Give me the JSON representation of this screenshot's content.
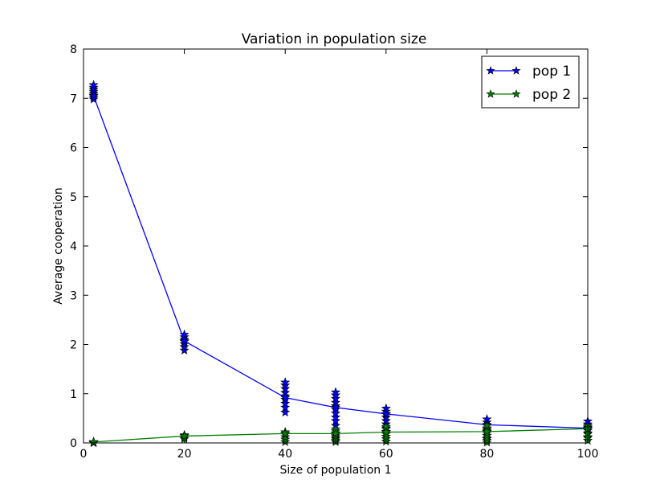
{
  "chart_data": {
    "type": "line",
    "title": "Variation in population size",
    "xlabel": "Size of population 1",
    "ylabel": "Average cooperation",
    "xlim": [
      0,
      100
    ],
    "ylim": [
      0,
      8
    ],
    "x_ticks": [
      0,
      20,
      40,
      60,
      80,
      100
    ],
    "y_ticks": [
      0,
      1,
      2,
      3,
      4,
      5,
      6,
      7,
      8
    ],
    "grid": false,
    "legend_position": "top-right",
    "series": [
      {
        "name": "pop 1",
        "color": "#0000ff",
        "marker": "star",
        "x": [
          2,
          20,
          40,
          50,
          60,
          80,
          100
        ],
        "y": [
          7.05,
          2.07,
          0.92,
          0.72,
          0.59,
          0.37,
          0.3
        ],
        "samples": [
          {
            "x": 2,
            "y": [
              6.98,
              7.02,
              7.06,
              7.1,
              7.14,
              7.18,
              7.22,
              7.27
            ]
          },
          {
            "x": 20,
            "y": [
              1.88,
              1.95,
              2.01,
              2.06,
              2.1,
              2.15,
              2.2
            ]
          },
          {
            "x": 40,
            "y": [
              0.62,
              0.72,
              0.8,
              0.88,
              0.95,
              1.02,
              1.1,
              1.17,
              1.23
            ]
          },
          {
            "x": 50,
            "y": [
              0.35,
              0.45,
              0.52,
              0.6,
              0.68,
              0.75,
              0.82,
              0.9,
              0.97,
              1.03
            ]
          },
          {
            "x": 60,
            "y": [
              0.3,
              0.38,
              0.45,
              0.52,
              0.58,
              0.64,
              0.7
            ]
          },
          {
            "x": 80,
            "y": [
              0.08,
              0.15,
              0.22,
              0.28,
              0.35,
              0.42,
              0.48
            ]
          },
          {
            "x": 100,
            "y": [
              0.1,
              0.18,
              0.25,
              0.32,
              0.38,
              0.44
            ]
          }
        ]
      },
      {
        "name": "pop 2",
        "color": "#008000",
        "marker": "star",
        "x": [
          2,
          20,
          40,
          50,
          60,
          80,
          100
        ],
        "y": [
          0.02,
          0.14,
          0.19,
          0.19,
          0.22,
          0.23,
          0.29
        ],
        "samples": [
          {
            "x": 2,
            "y": [
              0.0,
              0.01,
              0.02
            ]
          },
          {
            "x": 20,
            "y": [
              0.08,
              0.11,
              0.14,
              0.16
            ]
          },
          {
            "x": 40,
            "y": [
              0.02,
              0.07,
              0.12,
              0.17,
              0.22
            ]
          },
          {
            "x": 50,
            "y": [
              0.02,
              0.05,
              0.08,
              0.11,
              0.14,
              0.17,
              0.2,
              0.24,
              0.28
            ]
          },
          {
            "x": 60,
            "y": [
              0.03,
              0.08,
              0.13,
              0.18,
              0.23,
              0.28,
              0.33
            ]
          },
          {
            "x": 80,
            "y": [
              0.01,
              0.05,
              0.1,
              0.15,
              0.2,
              0.25,
              0.3,
              0.35
            ]
          },
          {
            "x": 100,
            "y": [
              0.05,
              0.12,
              0.2,
              0.28,
              0.35
            ]
          }
        ]
      }
    ]
  }
}
